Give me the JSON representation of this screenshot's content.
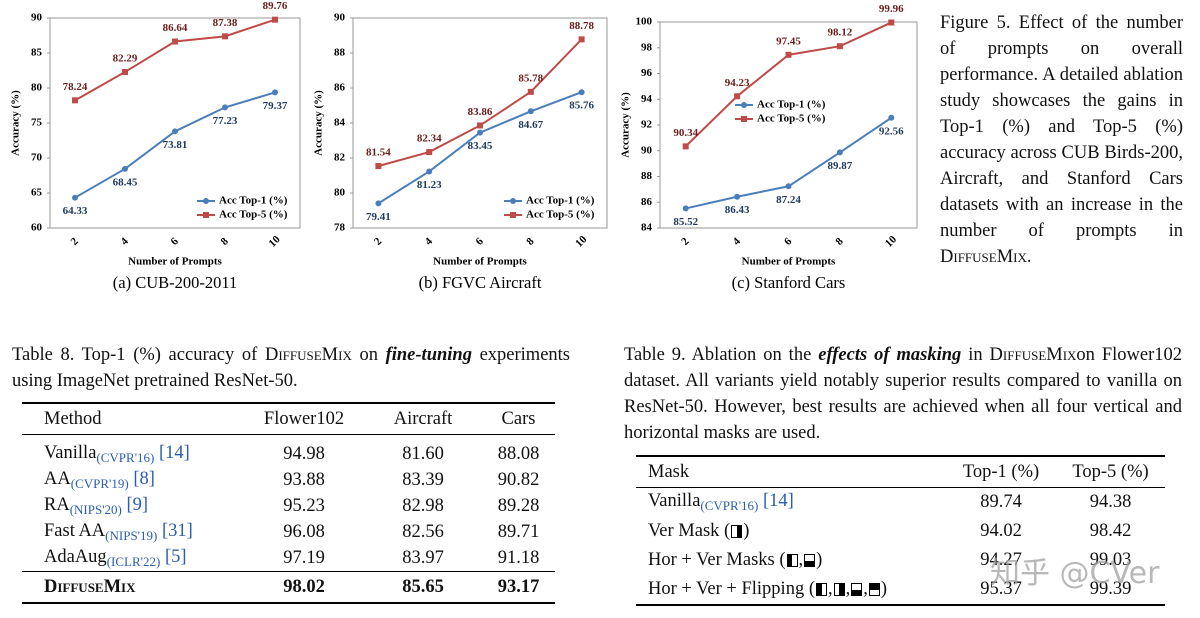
{
  "chart_data": [
    {
      "type": "line",
      "title": "(a) CUB-200-2011",
      "x_label": "Number of Prompts",
      "y_label": "Accuracy (%)",
      "categories": [
        "2",
        "4",
        "6",
        "8",
        "10"
      ],
      "series": [
        {
          "name": "Acc Top-1 (%)",
          "color": "#4a7ebb",
          "values": [
            64.33,
            68.45,
            73.81,
            77.23,
            79.37
          ]
        },
        {
          "name": "Acc Top-5 (%)",
          "color": "#be4b48",
          "values": [
            78.24,
            82.29,
            86.64,
            87.38,
            89.76
          ]
        }
      ],
      "ylim": [
        60,
        90
      ],
      "yticks": [
        60,
        65,
        70,
        75,
        80,
        85,
        90
      ],
      "legend": "lower right",
      "grid": false
    },
    {
      "type": "line",
      "title": "(b) FGVC Aircraft",
      "x_label": "Number of Prompts",
      "y_label": "Accuracy (%)",
      "categories": [
        "2",
        "4",
        "6",
        "8",
        "10"
      ],
      "series": [
        {
          "name": "Acc Top-1 (%)",
          "color": "#4a7ebb",
          "values": [
            79.41,
            81.23,
            83.45,
            84.67,
            85.76
          ]
        },
        {
          "name": "Acc Top-5 (%)",
          "color": "#be4b48",
          "values": [
            81.54,
            82.34,
            83.86,
            85.78,
            88.78
          ]
        }
      ],
      "ylim": [
        78,
        90
      ],
      "yticks": [
        78,
        80,
        82,
        84,
        86,
        88,
        90
      ],
      "legend": "lower right",
      "grid": false
    },
    {
      "type": "line",
      "title": "(c) Stanford Cars",
      "x_label": "Number of Prompts",
      "y_label": "Accuracy (%)",
      "categories": [
        "2",
        "4",
        "6",
        "8",
        "10"
      ],
      "series": [
        {
          "name": "Acc Top-1 (%)",
          "color": "#4a7ebb",
          "values": [
            85.52,
            86.43,
            87.24,
            89.87,
            92.56
          ]
        },
        {
          "name": "Acc Top-5 (%)",
          "color": "#be4b48",
          "values": [
            90.34,
            94.23,
            97.45,
            98.12,
            99.96
          ]
        }
      ],
      "ylim": [
        84,
        100
      ],
      "yticks": [
        84,
        86,
        88,
        90,
        92,
        94,
        96,
        98,
        100
      ],
      "legend": "center left",
      "grid": false
    }
  ],
  "figure5": {
    "label": "Figure 5.",
    "text": "Effect of the number of prompts on overall performance. A detailed ablation study showcases the gains in Top-1 (%) and Top-5 (%) accuracy across CUB Birds-200, Aircraft, and Stanford Cars datasets with an increase in the number of prompts in ",
    "method": "DiffuseMix",
    "end": "."
  },
  "table8": {
    "label": "Table 8.",
    "caption": [
      "Top-1 (%) accuracy of ",
      "DiffuseMix",
      " on ",
      "fine-tuning",
      " experiments using ImageNet pretrained ResNet-50."
    ],
    "header": [
      "Method",
      "Flower102",
      "Aircraft",
      "Cars"
    ],
    "rows": [
      {
        "method": "Vanilla",
        "venue": "(CVPR'16)",
        "ref": "[14]",
        "values": [
          "94.98",
          "81.60",
          "88.08"
        ]
      },
      {
        "method": "AA",
        "venue": "(CVPR'19)",
        "ref": "[8]",
        "values": [
          "93.88",
          "83.39",
          "90.82"
        ]
      },
      {
        "method": "RA",
        "venue": "(NIPS'20)",
        "ref": "[9]",
        "values": [
          "95.23",
          "82.98",
          "89.28"
        ]
      },
      {
        "method": "Fast AA",
        "venue": "(NIPS'19)",
        "ref": "[31]",
        "values": [
          "96.08",
          "82.56",
          "89.71"
        ]
      },
      {
        "method": "AdaAug",
        "venue": "(ICLR'22)",
        "ref": "[5]",
        "values": [
          "97.19",
          "83.97",
          "91.18"
        ]
      },
      {
        "method": "DiffuseMix",
        "values": [
          "98.02",
          "85.65",
          "93.17"
        ]
      }
    ]
  },
  "table9": {
    "label": "Table 9.",
    "caption": [
      "Ablation on the ",
      "effects of masking",
      " in ",
      "DiffuseMix",
      "on Flower102 dataset. All variants yield notably superior results compared to vanilla on ResNet-50. However, best results are achieved when all four vertical and horizontal masks are used."
    ],
    "header": [
      "Mask",
      "Top-1 (%)",
      "Top-5 (%)"
    ],
    "symbols": {
      "open": "(",
      "close": ")",
      "sep": ","
    },
    "rows": [
      {
        "mask": "Vanilla",
        "venue": "(CVPR'16)",
        "ref": "[14]",
        "values": [
          "89.74",
          "94.38"
        ]
      },
      {
        "mask": "Ver Mask",
        "values": [
          "94.02",
          "98.42"
        ]
      },
      {
        "mask": "Hor + Ver Masks",
        "values": [
          "94.27",
          "99.03"
        ]
      },
      {
        "mask": "Hor + Ver + Flipping",
        "values": [
          "95.37",
          "99.39"
        ]
      }
    ]
  },
  "watermark": "知乎 @CVer"
}
